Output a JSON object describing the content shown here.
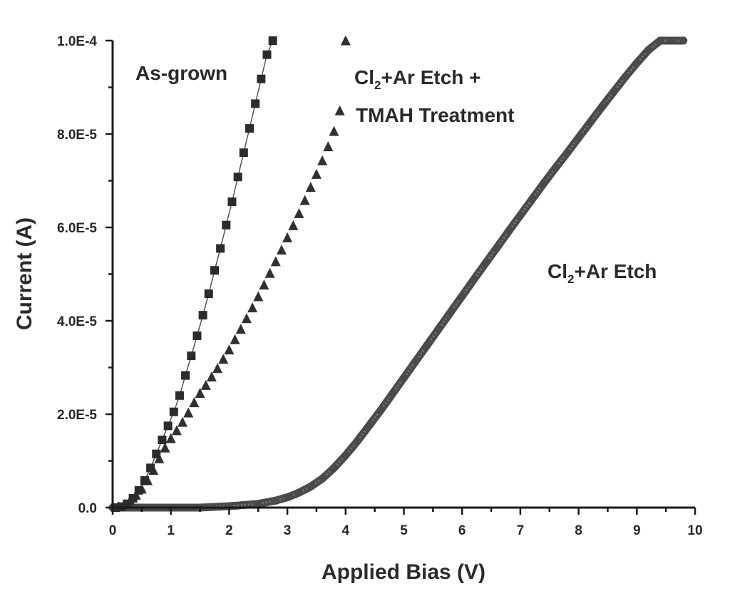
{
  "chart_data": {
    "type": "scatter",
    "title": "",
    "xlabel": "Applied Bias (V)",
    "ylabel": "Current (A)",
    "xlim": [
      0,
      10
    ],
    "ylim": [
      0,
      0.0001
    ],
    "x_ticks": [
      0,
      1,
      2,
      3,
      4,
      5,
      6,
      7,
      8,
      9,
      10
    ],
    "x_tick_labels": [
      "0",
      "1",
      "2",
      "3",
      "4",
      "5",
      "6",
      "7",
      "8",
      "9",
      "10"
    ],
    "y_ticks": [
      0,
      2e-05,
      4e-05,
      6e-05,
      8e-05,
      0.0001
    ],
    "y_tick_labels": [
      "0.0",
      "2.0E-5",
      "4.0E-5",
      "6.0E-5",
      "8.0E-5",
      "1.0E-4"
    ],
    "grid": false,
    "series": [
      {
        "name": "As-grown",
        "marker": "square",
        "connected": true,
        "x": [
          0.05,
          0.15,
          0.25,
          0.35,
          0.45,
          0.55,
          0.65,
          0.75,
          0.85,
          0.95,
          1.05,
          1.15,
          1.25,
          1.35,
          1.45,
          1.55,
          1.65,
          1.75,
          1.85,
          1.95,
          2.05,
          2.15,
          2.25,
          2.35,
          2.45,
          2.55,
          2.65,
          2.75
        ],
        "y": [
          0.0,
          2e-07,
          8e-07,
          2e-06,
          3.7e-06,
          5.8e-06,
          8.5e-06,
          1.15e-05,
          1.45e-05,
          1.75e-05,
          2.05e-05,
          2.4e-05,
          2.83e-05,
          3.25e-05,
          3.68e-05,
          4.12e-05,
          4.58e-05,
          5.08e-05,
          5.55e-05,
          6.05e-05,
          6.55e-05,
          7.08e-05,
          7.6e-05,
          8.12e-05,
          8.65e-05,
          9.18e-05,
          9.7e-05,
          0.0001
        ]
      },
      {
        "name": "Cl2+Ar Etch + TMAH Treatment",
        "marker": "triangle",
        "connected": false,
        "x": [
          0.1,
          0.2,
          0.3,
          0.4,
          0.5,
          0.6,
          0.7,
          0.8,
          0.9,
          1.0,
          1.1,
          1.2,
          1.3,
          1.4,
          1.5,
          1.6,
          1.7,
          1.8,
          1.9,
          2.0,
          2.1,
          2.2,
          2.3,
          2.4,
          2.5,
          2.6,
          2.7,
          2.8,
          2.9,
          3.0,
          3.1,
          3.2,
          3.3,
          3.4,
          3.5,
          3.6,
          3.7,
          3.8,
          3.9,
          4.0
        ],
        "y": [
          2e-07,
          7e-07,
          1.5e-06,
          2.7e-06,
          4e-06,
          5.8e-06,
          8e-06,
          1.05e-05,
          1.28e-05,
          1.48e-05,
          1.65e-05,
          1.83e-05,
          2.03e-05,
          2.25e-05,
          2.45e-05,
          2.62e-05,
          2.8e-05,
          2.98e-05,
          3.18e-05,
          3.38e-05,
          3.6e-05,
          3.82e-05,
          4.05e-05,
          4.28e-05,
          4.52e-05,
          4.77e-05,
          5.02e-05,
          5.27e-05,
          5.52e-05,
          5.78e-05,
          6.04e-05,
          6.3e-05,
          6.58e-05,
          6.86e-05,
          7.14e-05,
          7.43e-05,
          7.73e-05,
          8.06e-05,
          8.5e-05,
          0.0001
        ]
      },
      {
        "name": "Cl2+Ar Etch",
        "marker": "dense",
        "connected": true,
        "x": [
          0.0,
          0.5,
          1.0,
          1.5,
          2.0,
          2.5,
          2.8,
          3.0,
          3.2,
          3.4,
          3.6,
          3.8,
          4.0,
          4.2,
          4.4,
          4.6,
          4.8,
          5.0,
          5.2,
          5.4,
          5.6,
          5.8,
          6.0,
          6.2,
          6.4,
          6.6,
          6.8,
          7.0,
          7.2,
          7.4,
          7.6,
          7.8,
          8.0,
          8.2,
          8.4,
          8.6,
          8.8,
          9.0,
          9.2,
          9.4,
          9.6,
          9.8
        ],
        "y": [
          0.0,
          0.0,
          0.0,
          0.0,
          3e-07,
          8e-07,
          1.5e-06,
          2.2e-06,
          3.2e-06,
          4.5e-06,
          6.2e-06,
          8.5e-06,
          1.12e-05,
          1.42e-05,
          1.75e-05,
          2.08e-05,
          2.43e-05,
          2.78e-05,
          3.13e-05,
          3.48e-05,
          3.83e-05,
          4.18e-05,
          4.53e-05,
          4.88e-05,
          5.23e-05,
          5.57e-05,
          5.92e-05,
          6.26e-05,
          6.6e-05,
          6.94e-05,
          7.27e-05,
          7.59e-05,
          7.92e-05,
          8.25e-05,
          8.58e-05,
          8.9e-05,
          9.22e-05,
          9.52e-05,
          9.8e-05,
          0.0001,
          0.0001,
          0.0001
        ]
      }
    ],
    "annotations": {
      "as_grown": "As-grown",
      "tmah_line1_prefix": "Cl",
      "tmah_line1_sub": "2",
      "tmah_line1_suffix": "+Ar Etch +",
      "tmah_line2": "TMAH Treatment",
      "etch_prefix": "Cl",
      "etch_sub": "2",
      "etch_suffix": "+Ar Etch"
    },
    "colors": {
      "axis": "#1a1a1a",
      "as_grown": "#2b2b2b",
      "tmah": "#303030",
      "etch": "#4a4a4a",
      "text": "#2a2a2a"
    }
  }
}
